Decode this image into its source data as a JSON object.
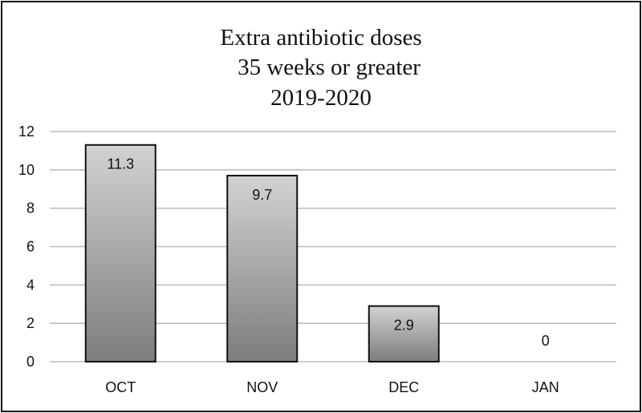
{
  "chart_data": {
    "type": "bar",
    "title_lines": [
      "Extra antibiotic doses",
      "35 weeks or greater",
      "2019-2020"
    ],
    "categories": [
      "OCT",
      "NOV",
      "DEC",
      "JAN"
    ],
    "values": [
      11.3,
      9.7,
      2.9,
      0
    ],
    "data_labels": [
      "11.3",
      "9.7",
      "2.9",
      "0"
    ],
    "ylim": [
      0,
      12
    ],
    "yticks": [
      "0",
      "2",
      "4",
      "6",
      "8",
      "10",
      "12"
    ],
    "grid": true,
    "legend": "none",
    "bar_gradient": [
      "#d2d2d2",
      "#7d7d7d"
    ]
  }
}
